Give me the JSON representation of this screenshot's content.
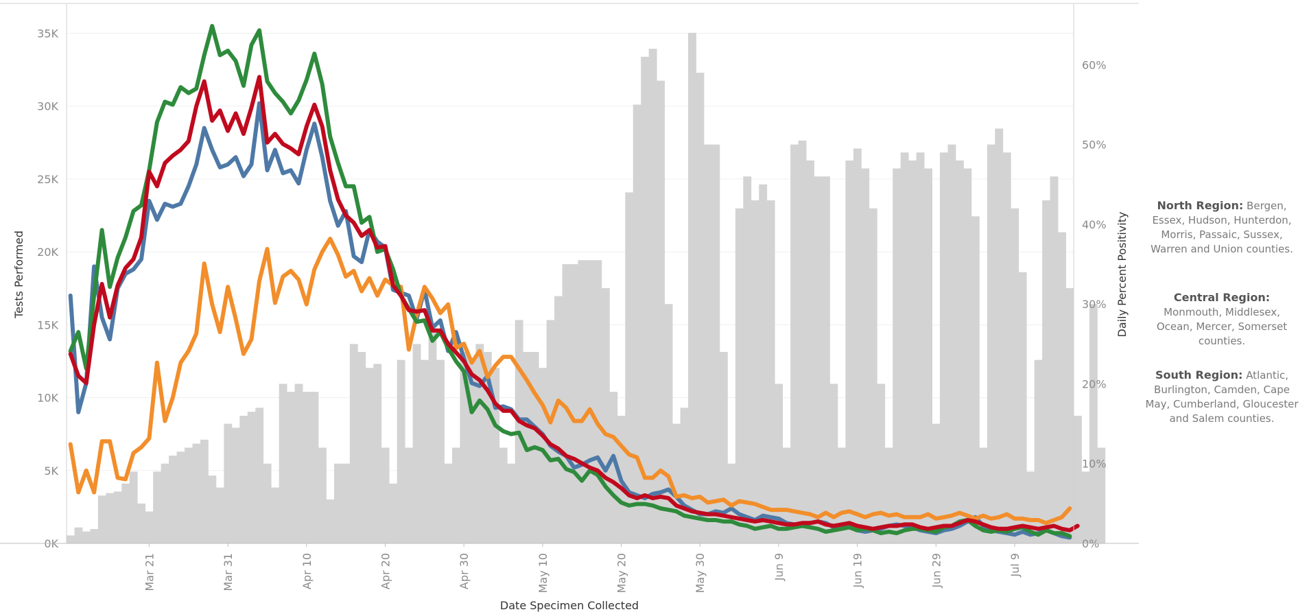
{
  "chart_data": {
    "type": "line",
    "xlabel": "Date Specimen Collected",
    "ylabel_left": "Tests Performed",
    "ylabel_right": "Daily Percent Positivity",
    "x_start": "2020-03-11",
    "x_ticks": [
      {
        "day": 10,
        "label": "Mar 21"
      },
      {
        "day": 20,
        "label": "Mar 31"
      },
      {
        "day": 30,
        "label": "Apr 10"
      },
      {
        "day": 40,
        "label": "Apr 20"
      },
      {
        "day": 50,
        "label": "Apr 30"
      },
      {
        "day": 60,
        "label": "May 10"
      },
      {
        "day": 70,
        "label": "May 20"
      },
      {
        "day": 80,
        "label": "May 30"
      },
      {
        "day": 90,
        "label": "Jun 9"
      },
      {
        "day": 100,
        "label": "Jun 19"
      },
      {
        "day": 110,
        "label": "Jun 29"
      },
      {
        "day": 120,
        "label": "Jul 9"
      }
    ],
    "y_left": {
      "min": 0,
      "max": 37000,
      "ticks": [
        {
          "v": 0,
          "label": "0K"
        },
        {
          "v": 5000,
          "label": "5K"
        },
        {
          "v": 10000,
          "label": "10K"
        },
        {
          "v": 15000,
          "label": "15K"
        },
        {
          "v": 20000,
          "label": "20K"
        },
        {
          "v": 25000,
          "label": "25K"
        },
        {
          "v": 30000,
          "label": "30K"
        },
        {
          "v": 35000,
          "label": "35K"
        }
      ]
    },
    "y_right": {
      "min": 0,
      "max": 67.6,
      "ticks": [
        {
          "v": 0,
          "label": "0%"
        },
        {
          "v": 10,
          "label": "10%"
        },
        {
          "v": 20,
          "label": "20%"
        },
        {
          "v": 30,
          "label": "30%"
        },
        {
          "v": 40,
          "label": "40%"
        },
        {
          "v": 50,
          "label": "50%"
        },
        {
          "v": 60,
          "label": "60%"
        }
      ]
    },
    "grid": true,
    "bar_color": "#d3d3d3",
    "bars_positivity_pct": [
      1,
      2,
      1.5,
      1.8,
      6,
      6.3,
      6.5,
      7.5,
      9,
      5,
      4,
      9,
      10,
      11,
      11.5,
      12,
      12.5,
      13,
      8.5,
      7,
      15,
      14.5,
      16,
      16.5,
      17,
      10,
      7,
      20,
      19,
      20,
      19,
      19,
      12,
      5.5,
      10,
      10,
      25,
      24,
      22,
      22.5,
      12,
      7.5,
      23,
      12,
      25,
      23,
      27,
      23,
      10,
      12,
      24,
      23,
      25,
      24,
      22,
      12,
      10,
      28,
      24,
      24,
      22,
      28,
      31,
      35,
      35,
      35.5,
      35.5,
      35.5,
      32,
      19,
      16,
      44,
      55,
      61,
      62,
      58,
      30,
      15,
      17,
      64,
      59,
      50,
      50,
      24,
      10,
      42,
      46,
      43,
      45,
      43,
      20,
      12,
      50,
      50.5,
      48,
      46,
      46,
      20,
      12,
      48,
      49.5,
      47,
      42,
      20,
      12,
      47,
      49,
      48,
      49,
      47,
      15,
      49,
      50,
      48,
      47,
      41,
      12,
      50,
      52,
      49,
      42,
      34,
      9,
      23,
      43,
      46,
      39,
      32,
      16,
      9,
      30,
      12
    ],
    "series": [
      {
        "color": "#4e79a7",
        "values": [
          17000,
          9000,
          11000,
          19000,
          15500,
          14000,
          17500,
          18500,
          18800,
          19500,
          23500,
          22200,
          23300,
          23100,
          23300,
          24500,
          26000,
          28500,
          27000,
          25800,
          26000,
          26500,
          25200,
          26000,
          30200,
          25600,
          27000,
          25400,
          25600,
          24700,
          27000,
          28800,
          26500,
          23500,
          21800,
          22800,
          19700,
          19300,
          21500,
          20700,
          20300,
          17400,
          17200,
          17000,
          15400,
          17400,
          14800,
          15300,
          13200,
          14500,
          12700,
          11000,
          10800,
          11500,
          9300,
          9400,
          9200,
          8500,
          8500,
          8000,
          7500,
          6700,
          6300,
          6000,
          5200,
          5400,
          5700,
          5900,
          5000,
          6000,
          4300,
          3500,
          3300,
          3100,
          3400,
          3500,
          3700,
          3200,
          2600,
          2300,
          2000,
          2000,
          2200,
          2100,
          2400,
          2000,
          1800,
          1600,
          1900,
          1800,
          1700,
          1400,
          1300,
          1200,
          1400,
          1500,
          1400,
          1100,
          1300,
          1100,
          900,
          800,
          900,
          1000,
          1200,
          1300,
          1200,
          1100,
          900,
          800,
          700,
          900,
          1000,
          1200,
          1500,
          1800,
          1200,
          900,
          800,
          700,
          600,
          800,
          600,
          700,
          900,
          700,
          500,
          400
        ]
      },
      {
        "color": "#f28e2b",
        "values": [
          6800,
          3500,
          5000,
          3500,
          7000,
          7000,
          4500,
          4400,
          6200,
          6600,
          7200,
          12400,
          8400,
          10000,
          12400,
          13200,
          14400,
          19200,
          16400,
          14500,
          17600,
          15400,
          13000,
          14000,
          18000,
          20200,
          16500,
          18300,
          18700,
          18100,
          16400,
          18800,
          20000,
          20900,
          19800,
          18300,
          18700,
          17300,
          18200,
          17000,
          18100,
          17700,
          17600,
          13300,
          15700,
          17600,
          16800,
          15800,
          16400,
          13400,
          13700,
          12400,
          13200,
          11400,
          12200,
          12800,
          12800,
          12000,
          11200,
          10300,
          9500,
          8300,
          9800,
          9300,
          8400,
          8400,
          9200,
          8200,
          7500,
          7300,
          6700,
          6100,
          5900,
          4500,
          4500,
          5000,
          4600,
          3200,
          3300,
          3100,
          3200,
          2800,
          2900,
          3000,
          2600,
          2900,
          2800,
          2700,
          2500,
          2300,
          2300,
          2300,
          2200,
          2100,
          2000,
          1800,
          2100,
          1800,
          2100,
          2200,
          2000,
          1800,
          2000,
          2100,
          1900,
          2000,
          1800,
          1800,
          1800,
          2000,
          1700,
          1800,
          1900,
          2100,
          1900,
          1700,
          1900,
          1700,
          1800,
          2000,
          1700,
          1700,
          1600,
          1600,
          1400,
          1600,
          1800,
          2400
        ]
      },
      {
        "color": "#2e8b3c",
        "values": [
          13200,
          14500,
          12000,
          17000,
          21500,
          17600,
          19600,
          21000,
          22800,
          23200,
          25600,
          28900,
          30300,
          30100,
          31300,
          30900,
          31200,
          33500,
          35500,
          33500,
          33800,
          33100,
          31400,
          34200,
          35200,
          31700,
          30900,
          30300,
          29500,
          30400,
          31800,
          33600,
          31500,
          27900,
          26100,
          24500,
          24500,
          22000,
          22400,
          20000,
          20200,
          18800,
          17000,
          16100,
          15200,
          15300,
          13900,
          14500,
          13400,
          12500,
          11800,
          9000,
          9800,
          9200,
          8100,
          7700,
          7500,
          7600,
          6400,
          6600,
          6400,
          5700,
          5800,
          5100,
          4900,
          4300,
          5000,
          4700,
          3900,
          3300,
          2800,
          2600,
          2700,
          2700,
          2600,
          2400,
          2300,
          2200,
          1900,
          1800,
          1700,
          1600,
          1600,
          1500,
          1500,
          1300,
          1200,
          1000,
          1100,
          1200,
          1000,
          1000,
          1100,
          1200,
          1100,
          1000,
          800,
          900,
          1000,
          1100,
          900,
          1000,
          900,
          700,
          800,
          700,
          900,
          1000,
          1000,
          900,
          800,
          1100,
          1200,
          1500,
          1600,
          1200,
          900,
          800,
          900,
          800,
          1000,
          1100,
          800,
          600,
          900,
          700,
          700,
          500
        ]
      },
      {
        "color": "#c00a1e",
        "values": [
          13000,
          11500,
          11000,
          15000,
          17800,
          15500,
          17700,
          18900,
          19500,
          21000,
          25500,
          24500,
          26100,
          26600,
          27000,
          27600,
          30000,
          31700,
          29000,
          29700,
          28300,
          29500,
          28100,
          29900,
          32000,
          27500,
          28100,
          27400,
          27100,
          26700,
          28600,
          30100,
          28600,
          25600,
          23600,
          22500,
          22000,
          21100,
          21500,
          20300,
          20400,
          17700,
          17000,
          16000,
          15900,
          16000,
          14600,
          14600,
          13700,
          13100,
          12500,
          11600,
          11200,
          10500,
          9600,
          9100,
          9100,
          8400,
          8100,
          7900,
          7400,
          6800,
          6500,
          6000,
          5800,
          5500,
          5200,
          5000,
          4500,
          4200,
          3800,
          3300,
          3100,
          3300,
          3100,
          3200,
          3100,
          2600,
          2400,
          2200,
          2100,
          2000,
          2000,
          1900,
          1800,
          1700,
          1600,
          1500,
          1600,
          1500,
          1400,
          1300,
          1300,
          1400,
          1400,
          1500,
          1300,
          1200,
          1300,
          1400,
          1200,
          1100,
          1000,
          1100,
          1200,
          1200,
          1300,
          1300,
          1100,
          1000,
          1100,
          1200,
          1200,
          1400,
          1600,
          1500,
          1300,
          1100,
          1000,
          1000,
          1100,
          1200,
          1100,
          1000,
          1100,
          1200,
          1000,
          900,
          1200
        ]
      }
    ]
  },
  "legend": {
    "regions": [
      {
        "name": "North Region:",
        "text": "Bergen, Essex, Hudson, Hunterdon, Morris, Passaic, Sussex, Warren and Union counties."
      },
      {
        "name": "Central Region:",
        "text": "Monmouth, Middlesex, Ocean, Mercer, Somerset counties."
      },
      {
        "name": "South Region:",
        "text": "Atlantic, Burlington, Camden, Cape May, Cumberland, Gloucester and Salem counties."
      }
    ]
  }
}
